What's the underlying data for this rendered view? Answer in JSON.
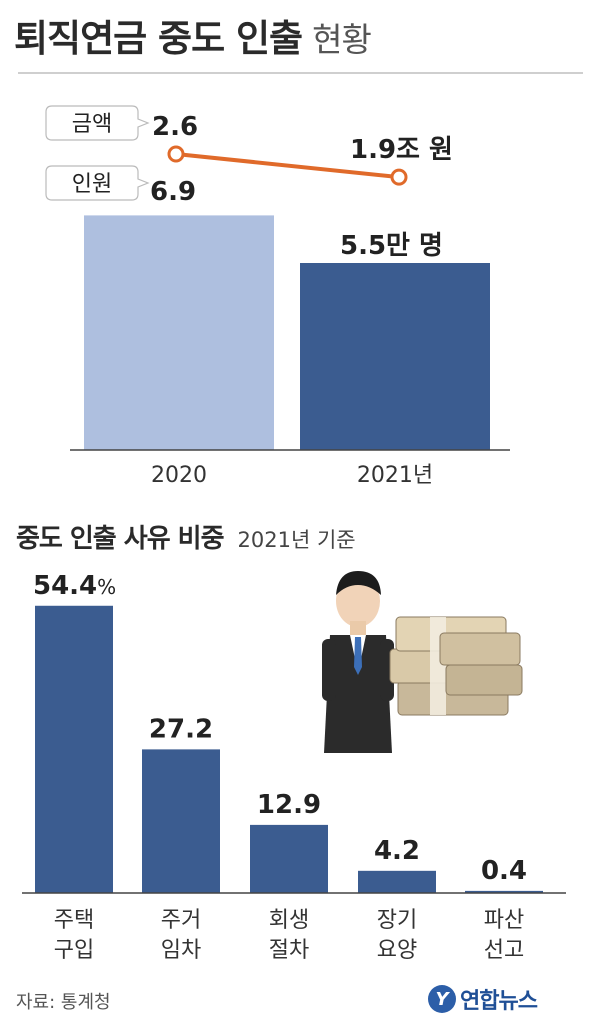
{
  "title": "퇴직연금 중도 인출",
  "title_suffix": "현황",
  "chart_data": [
    {
      "type": "bar",
      "categories": [
        "2020",
        "2021년"
      ],
      "series": [
        {
          "name": "인원",
          "values": [
            6.9,
            5.5
          ],
          "unit": "만 명"
        },
        {
          "name": "금액",
          "values": [
            2.6,
            1.9
          ],
          "unit": "조 원"
        }
      ],
      "value_labels": {
        "bar": [
          "6.9",
          "5.5만 명"
        ],
        "line": [
          "2.6",
          "1.9조 원"
        ]
      },
      "legend_labels": {
        "line": "금액",
        "bar": "인원"
      },
      "colors": {
        "bar_2020": "#aebfdf",
        "bar_2021": "#3b5c90",
        "line": "#e06a2a"
      }
    },
    {
      "type": "bar",
      "title": "중도 인출 사유 비중",
      "subtitle": "2021년 기준",
      "categories": [
        [
          "주택",
          "구입"
        ],
        [
          "주거",
          "임차"
        ],
        [
          "회생",
          "절차"
        ],
        [
          "장기",
          "요양"
        ],
        [
          "파산",
          "선고"
        ]
      ],
      "values": [
        54.4,
        27.2,
        12.9,
        4.2,
        0.4
      ],
      "value_labels": [
        "54.4",
        "27.2",
        "12.9",
        "4.2",
        "0.4"
      ],
      "unit": "%",
      "colors": {
        "bar": "#3b5c90"
      }
    }
  ],
  "source": "자료: 통계청",
  "logo_text": "연합뉴스",
  "logo_mark": "Y"
}
